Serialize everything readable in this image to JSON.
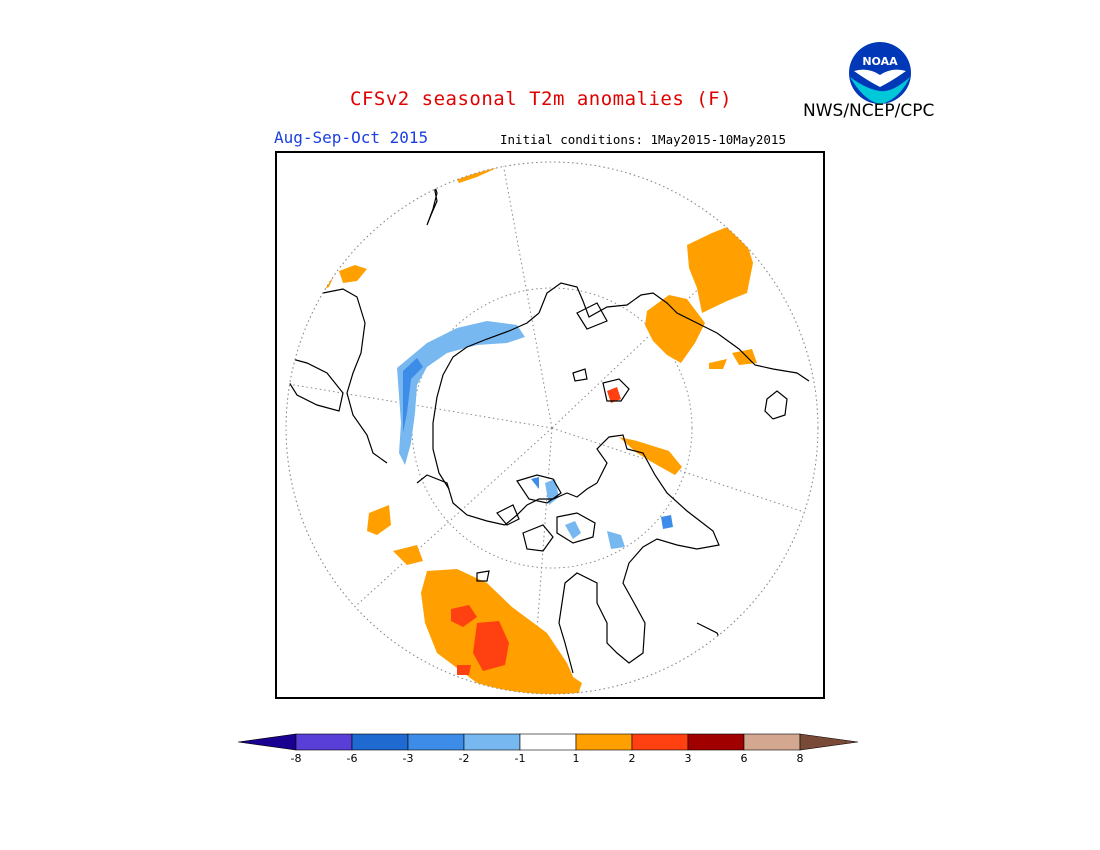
{
  "header": {
    "title": "CFSv2 seasonal T2m anomalies (F)",
    "agency": "NWS/NCEP/CPC",
    "season": "Aug-Sep-Oct 2015",
    "initial_conditions": "Initial conditions: 1May2015-10May2015"
  },
  "logo": {
    "text": "NOAA",
    "colors": {
      "bird": "#ffffff",
      "sea": "#00c8d8",
      "sky": "#0038b8"
    }
  },
  "map": {
    "projection": "north polar stereographic",
    "variable": "2m temperature anomaly",
    "units": "F"
  },
  "legend": {
    "colors": [
      "#1a0090",
      "#5a3ed8",
      "#1e6ad0",
      "#3c8ce8",
      "#78b8f0",
      "#ffffff",
      "#ffa000",
      "#ff4010",
      "#a00000",
      "#d4a890",
      "#7a4a38"
    ],
    "boundaries": [
      "-8",
      "-6",
      "-3",
      "-2",
      "-1",
      "1",
      "2",
      "3",
      "6",
      "8"
    ]
  }
}
